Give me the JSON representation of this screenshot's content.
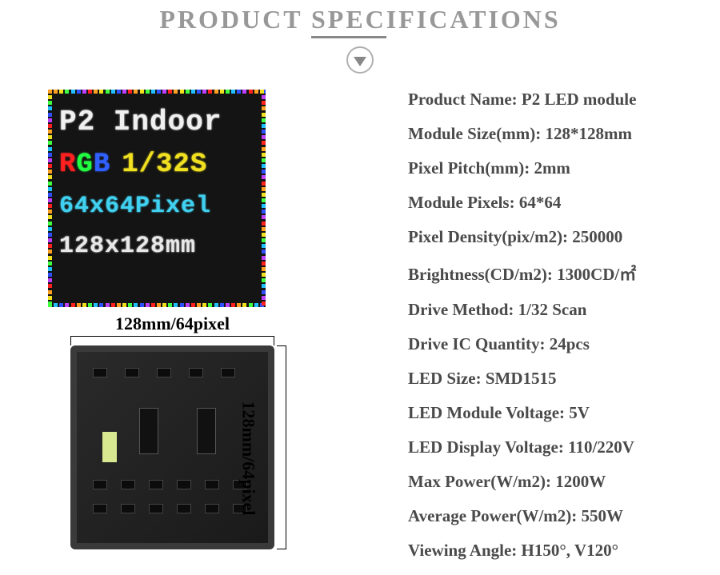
{
  "header": {
    "title_pre": "PRODUCT ",
    "title_underlined": "SPEC",
    "title_post": "IFICATIONS"
  },
  "led_display": {
    "line1": "P2 Indoor",
    "line2_r": "R",
    "line2_g": "G",
    "line2_b": "B",
    "line2_rest": "1/32S",
    "line3": "64x64Pixel",
    "line4": "128x128mm",
    "border_colors": [
      "#ff2020",
      "#ffa020",
      "#f0e020",
      "#40ff40",
      "#20c0ff",
      "#3050ff",
      "#c040ff"
    ]
  },
  "dimensions": {
    "top_label": "128mm/64pixel",
    "right_label": "128mm/64pixel"
  },
  "specs": [
    {
      "label": "Product Name",
      "value": "P2 LED module"
    },
    {
      "label": "Module Size(mm)",
      "value": "128*128mm"
    },
    {
      "label": "Pixel Pitch(mm)",
      "value": "2mm"
    },
    {
      "label": "Module Pixels",
      "value": "64*64"
    },
    {
      "label": "Pixel Density(pix/m2)",
      "value": "250000"
    },
    {
      "label": "Brightness(CD/m2)",
      "value": "1300CD/㎡"
    },
    {
      "label": "Drive Method",
      "value": "1/32 Scan"
    },
    {
      "label": "Drive IC Quantity",
      "value": "24pcs"
    },
    {
      "label": "LED Size",
      "value": "SMD1515"
    },
    {
      "label": "LED Module Voltage",
      "value": "5V"
    },
    {
      "label": "LED Display Voltage",
      "value": "110/220V"
    },
    {
      "label": "Max Power(W/m2)",
      "value": "1200W"
    },
    {
      "label": "Average Power(W/m2)",
      "value": "550W"
    },
    {
      "label": "Viewing Angle",
      "value": "H150°, V120°"
    }
  ],
  "styling": {
    "title_color": "#989898",
    "title_fontsize": 32,
    "spec_color": "#4a4a4a",
    "spec_fontsize": 21,
    "background": "#ffffff",
    "panel_bg": "#141414",
    "pcb_bg": "#222222"
  }
}
